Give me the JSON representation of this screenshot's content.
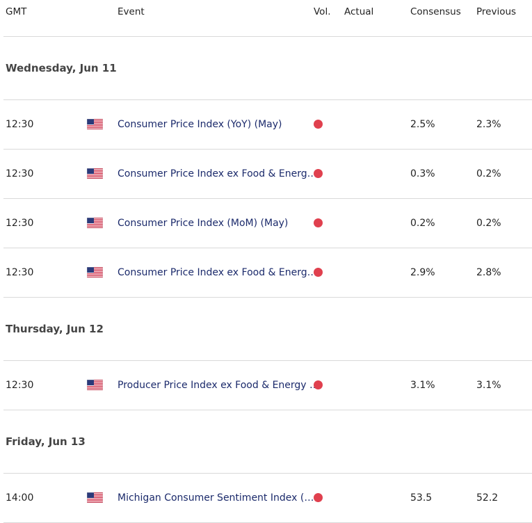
{
  "header": {
    "columns": [
      "GMT",
      "Event",
      "Vol.",
      "Actual",
      "Consensus",
      "Previous"
    ]
  },
  "groups": [
    {
      "date": "Wednesday, Jun 11",
      "rows": [
        {
          "time": "12:30",
          "event": "Consumer Price Index (YoY) (May)",
          "consensus": "2.5%",
          "previous": "2.3%"
        },
        {
          "time": "12:30",
          "event": "Consumer Price Index ex Food & Energ…",
          "consensus": "0.3%",
          "previous": "0.2%"
        },
        {
          "time": "12:30",
          "event": "Consumer Price Index (MoM) (May)",
          "consensus": "0.2%",
          "previous": "0.2%"
        },
        {
          "time": "12:30",
          "event": "Consumer Price Index ex Food & Energ…",
          "consensus": "2.9%",
          "previous": "2.8%"
        }
      ]
    },
    {
      "date": "Thursday, Jun 12",
      "rows": [
        {
          "time": "12:30",
          "event": "Producer Price Index ex Food & Energy …",
          "consensus": "3.1%",
          "previous": "3.1%"
        }
      ]
    },
    {
      "date": "Friday, Jun 13",
      "rows": [
        {
          "time": "14:00",
          "event": "Michigan Consumer Sentiment Index (…",
          "consensus": "53.5",
          "previous": "52.2"
        }
      ]
    }
  ]
}
